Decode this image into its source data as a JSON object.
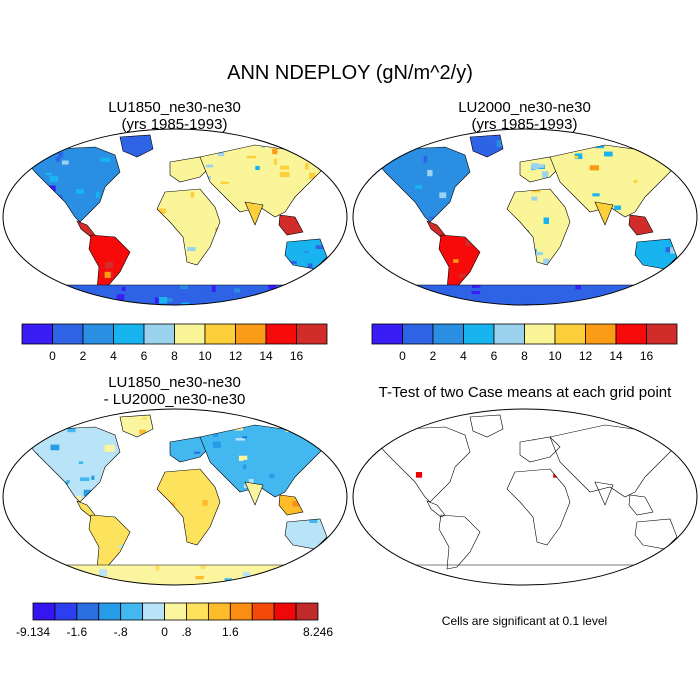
{
  "title": "ANN NDEPLOY (gN/m^2/y)",
  "panels": [
    {
      "title_line1": "LU1850_ne30-ne30",
      "title_line2": "(yrs 1985-1993)"
    },
    {
      "title_line1": "LU2000_ne30-ne30",
      "title_line2": "(yrs 1985-1993)"
    },
    {
      "title_line1": "LU1850_ne30-ne30",
      "title_line2": "- LU2000_ne30-ne30"
    },
    {
      "title_line1": "T-Test of two Case means at each grid point",
      "title_line2": ""
    }
  ],
  "colorbar_abs": {
    "colors": [
      "#3a1cf5",
      "#2f63e6",
      "#2a8fe3",
      "#18b4ef",
      "#9bd3ee",
      "#fbf59a",
      "#fdcf3a",
      "#fb9c16",
      "#f70a0a",
      "#d12c29"
    ],
    "labels": [
      "0",
      "2",
      "4",
      "6",
      "8",
      "10",
      "12",
      "14",
      "16"
    ]
  },
  "colorbar_diff": {
    "colors": [
      "#3616f0",
      "#2c3ef0",
      "#2a6fe2",
      "#269be8",
      "#43b8f0",
      "#b9e3f6",
      "#fbf5a0",
      "#fde35d",
      "#fdbd2b",
      "#fb8e12",
      "#f5490a",
      "#ee0808",
      "#c12a2a"
    ],
    "labels": [
      "-9.134",
      "-1.6",
      "-.8",
      "0",
      ".8",
      "1.6",
      "8.246"
    ]
  },
  "ttest": {
    "note": "Cells are significant at 0.1 level",
    "color": "#ee0000"
  }
}
